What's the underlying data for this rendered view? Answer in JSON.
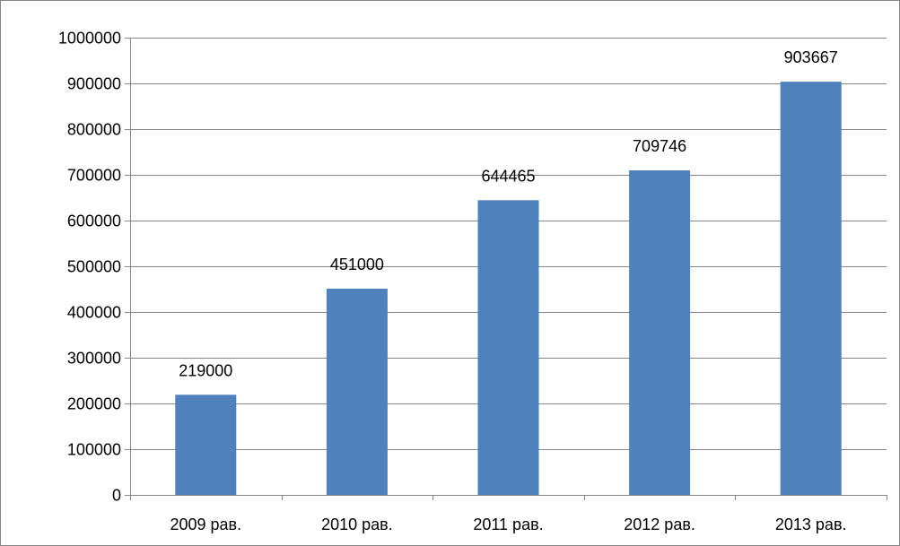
{
  "chart_data": {
    "type": "bar",
    "categories": [
      "2009 рав.",
      "2010 рав.",
      "2011 рав.",
      "2012 рав.",
      "2013 рав."
    ],
    "values": [
      219000,
      451000,
      644465,
      709746,
      903667
    ],
    "data_labels": [
      "219000",
      "451000",
      "644465",
      "709746",
      "903667"
    ],
    "title": "",
    "xlabel": "",
    "ylabel": "",
    "ylim": [
      0,
      1000000
    ],
    "yticks": [
      0,
      100000,
      200000,
      300000,
      400000,
      500000,
      600000,
      700000,
      800000,
      900000,
      1000000
    ],
    "ytick_labels": [
      "0",
      "100000",
      "200000",
      "300000",
      "400000",
      "500000",
      "600000",
      "700000",
      "800000",
      "900000",
      "1000000"
    ],
    "grid": true,
    "legend": "none",
    "bar_color": "#4F81BD",
    "grid_color": "#868686",
    "frame_color": "#868686"
  }
}
